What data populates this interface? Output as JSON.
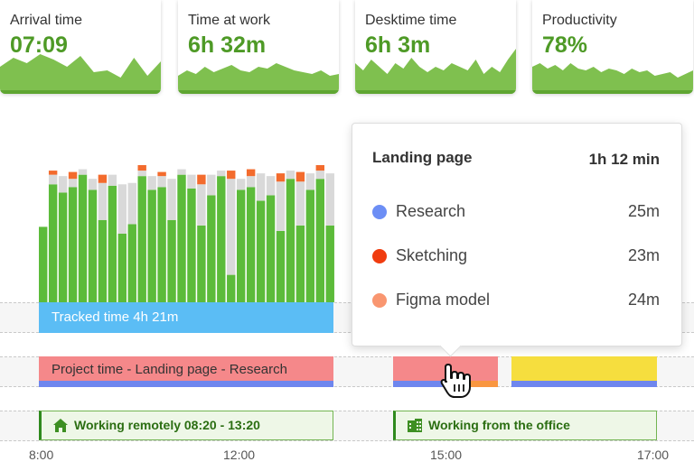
{
  "cards": [
    {
      "label": "Arrival time",
      "value": "07:09",
      "spark": [
        30,
        40,
        34,
        44,
        38,
        30,
        42,
        24,
        26,
        18,
        40,
        20,
        36
      ]
    },
    {
      "label": "Time at work",
      "value": "6h 32m",
      "spark": [
        20,
        26,
        22,
        30,
        24,
        28,
        32,
        26,
        24,
        30,
        28,
        34,
        30,
        26,
        24,
        22,
        26,
        20,
        22
      ]
    },
    {
      "label": "Desktime time",
      "value": "6h 3m",
      "spark": [
        34,
        26,
        38,
        30,
        22,
        34,
        28,
        40,
        30,
        24,
        30,
        26,
        34,
        30,
        26,
        38,
        22,
        30,
        24,
        38,
        50
      ]
    },
    {
      "label": "Productivity",
      "value": "78%",
      "spark": [
        30,
        34,
        28,
        32,
        26,
        34,
        28,
        26,
        30,
        24,
        28,
        26,
        22,
        28,
        24,
        26,
        20,
        22,
        24,
        18,
        22,
        26
      ]
    }
  ],
  "bars": [
    [
      0.55,
      0.0,
      0.0
    ],
    [
      0.86,
      0.07,
      0.03
    ],
    [
      0.8,
      0.12,
      0.0
    ],
    [
      0.84,
      0.06,
      0.05
    ],
    [
      0.93,
      0.04,
      0.0
    ],
    [
      0.82,
      0.08,
      0.0
    ],
    [
      0.6,
      0.27,
      0.06
    ],
    [
      0.85,
      0.08,
      0.0
    ],
    [
      0.5,
      0.36,
      0.0
    ],
    [
      0.57,
      0.3,
      0.0
    ],
    [
      0.92,
      0.04,
      0.04
    ],
    [
      0.82,
      0.1,
      0.0
    ],
    [
      0.84,
      0.08,
      0.03
    ],
    [
      0.6,
      0.3,
      0.0
    ],
    [
      0.93,
      0.04,
      0.0
    ],
    [
      0.83,
      0.1,
      0.0
    ],
    [
      0.56,
      0.3,
      0.07
    ],
    [
      0.78,
      0.15,
      0.0
    ],
    [
      0.92,
      0.04,
      0.0
    ],
    [
      0.2,
      0.7,
      0.06
    ],
    [
      0.82,
      0.08,
      0.0
    ],
    [
      0.84,
      0.08,
      0.05
    ],
    [
      0.74,
      0.2,
      0.0
    ],
    [
      0.78,
      0.14,
      0.0
    ],
    [
      0.52,
      0.36,
      0.06
    ],
    [
      0.9,
      0.06,
      0.0
    ],
    [
      0.56,
      0.32,
      0.07
    ],
    [
      0.82,
      0.12,
      0.0
    ],
    [
      0.9,
      0.06,
      0.04
    ],
    [
      0.56,
      0.38,
      0.0
    ]
  ],
  "colors": {
    "productive": "#5cbb3a",
    "neutral": "#d9d9d9",
    "unproductive": "#f36b2d",
    "tracked": "#5bbdf5",
    "project_red": "#f5888a",
    "project_yellow": "#f6de3e",
    "project_strip": "#6e86ee",
    "spark_fill": "#7fc04f"
  },
  "tracked": {
    "label": "Tracked time 4h 21m"
  },
  "project": {
    "label": "Project time - Landing page - Research"
  },
  "locations": [
    {
      "label": "Working remotely 08:20 - 13:20",
      "icon": "home-icon"
    },
    {
      "label": "Working from the office",
      "icon": "office-building-icon"
    }
  ],
  "axis": {
    "ticks": [
      "8:00",
      "12:00",
      "15:00",
      "17:00"
    ]
  },
  "tooltip": {
    "title": "Landing page",
    "total": "1h 12 min",
    "items": [
      {
        "name": "Research",
        "duration": "25m",
        "color": "#6c8ef5"
      },
      {
        "name": "Sketching",
        "duration": "23m",
        "color": "#f03c0f"
      },
      {
        "name": "Figma model",
        "duration": "24m",
        "color": "#f99670"
      }
    ]
  }
}
